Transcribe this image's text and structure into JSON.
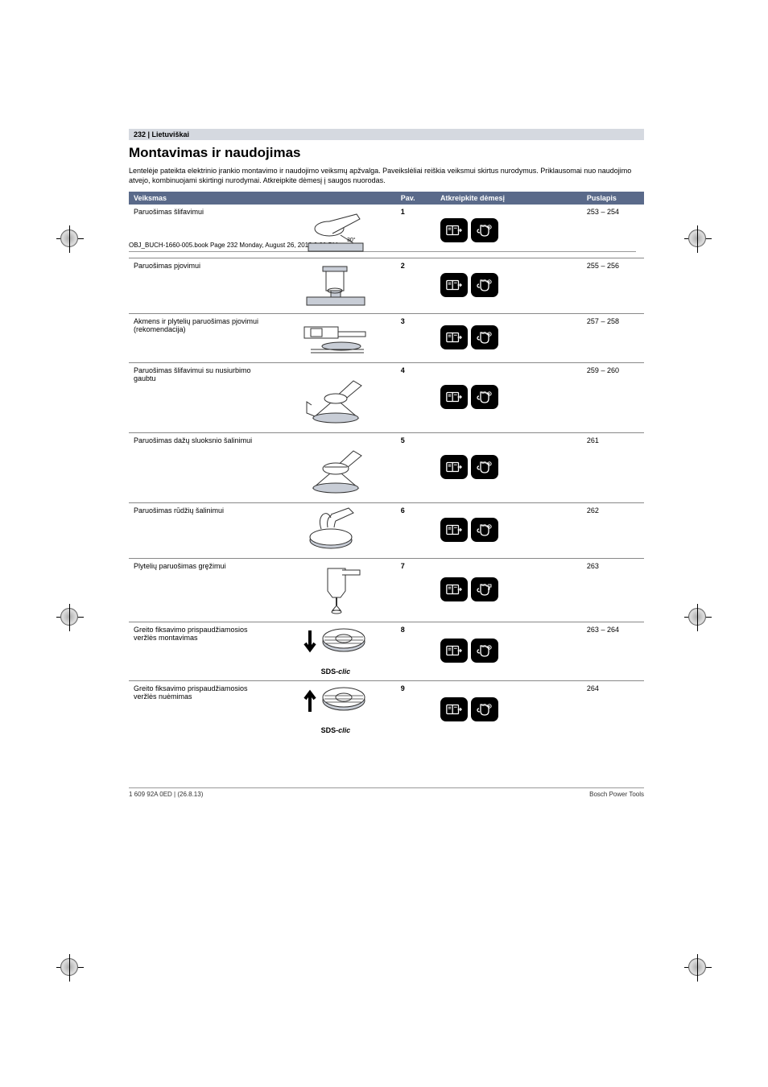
{
  "header_line": "OBJ_BUCH-1660-005.book  Page 232  Monday, August 26, 2013  3:30 PM",
  "page_band": "232 | Lietuviškai",
  "title": "Montavimas ir naudojimas",
  "intro": "Lentelėje pateikta elektrinio įrankio montavimo ir naudojimo veiksmų apžvalga. Paveikslėliai reiškia veiksmui skirtus nurodymus. Priklausomai nuo naudojimo atvejo, kombinuojami skirtingi nurodymai. Atkreipkite dėmesį į saugos nuorodas.",
  "columns": {
    "action": "Veiksmas",
    "pav": "Pav.",
    "attention": "Atkreipkite dėmesį",
    "page": "Puslapis"
  },
  "rows": [
    {
      "action": "Paruošimas šlifavimui",
      "pav": "1",
      "page": "253 – 254"
    },
    {
      "action": "Paruošimas pjovimui",
      "pav": "2",
      "page": "255 – 256"
    },
    {
      "action": "Akmens ir plytelių paruošimas pjovimui (rekomendacija)",
      "pav": "3",
      "page": "257 – 258"
    },
    {
      "action": "Paruošimas šlifavimui su nusiurbimo gaubtu",
      "pav": "4",
      "page": "259 – 260"
    },
    {
      "action": "Paruošimas dažų sluoksnio šalinimui",
      "pav": "5",
      "page": "261"
    },
    {
      "action": "Paruošimas rūdžių šalinimui",
      "pav": "6",
      "page": "262"
    },
    {
      "action": "Plytelių paruošimas gręžimui",
      "pav": "7",
      "page": "263"
    },
    {
      "action": "Greito fiksavimo prispaudžiamosios veržlės montavimas",
      "pav": "8",
      "page": "263 – 264",
      "sds": true,
      "arrow": "down"
    },
    {
      "action": "Greito fiksavimo prispaudžiamosios veržlės nuėmimas",
      "pav": "9",
      "page": "264",
      "sds": true,
      "arrow": "up"
    }
  ],
  "sds_label": "SDS-clic",
  "footer_left": "1 609 92A 0ED | (26.8.13)",
  "footer_right": "Bosch Power Tools"
}
